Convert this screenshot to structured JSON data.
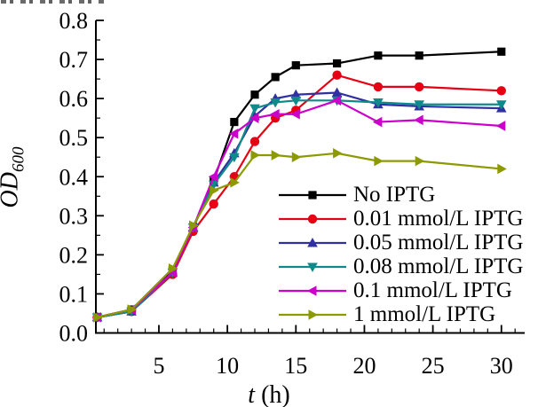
{
  "chart_data": {
    "type": "line",
    "title": "",
    "xlabel": "t (h)",
    "ylabel": "OD600",
    "x": [
      0.5,
      3,
      6,
      7.5,
      9,
      10.5,
      12,
      13.5,
      15,
      18,
      21,
      24,
      30
    ],
    "xlim": [
      0.4,
      31.7
    ],
    "ylim": [
      0,
      0.8
    ],
    "x_major_ticks": [
      5,
      10,
      15,
      20,
      25,
      30
    ],
    "x_minor_step": 1,
    "y_major_step": 0.1,
    "y_minor_step": 0.05,
    "grid": false,
    "legend_position": "inside-bottom-right",
    "series": [
      {
        "name": "No IPTG",
        "color": "#000000",
        "marker": "square",
        "values": [
          0.04,
          0.06,
          0.16,
          0.27,
          0.39,
          0.54,
          0.61,
          0.655,
          0.685,
          0.69,
          0.71,
          0.71,
          0.72
        ]
      },
      {
        "name": "0.01 mmol/L IPTG",
        "color": "#e60014",
        "marker": "circle",
        "values": [
          0.04,
          0.055,
          0.15,
          0.26,
          0.33,
          0.4,
          0.49,
          0.55,
          0.57,
          0.66,
          0.63,
          0.63,
          0.62
        ]
      },
      {
        "name": "0.05 mmol/L IPTG",
        "color": "#3030a2",
        "marker": "triangle-up",
        "values": [
          0.04,
          0.055,
          0.155,
          0.27,
          0.385,
          0.46,
          0.555,
          0.6,
          0.61,
          0.615,
          0.585,
          0.58,
          0.575
        ]
      },
      {
        "name": "0.08 mmol/L IPTG",
        "color": "#0f8a8a",
        "marker": "triangle-down",
        "values": [
          0.04,
          0.055,
          0.155,
          0.27,
          0.38,
          0.45,
          0.575,
          0.59,
          0.595,
          0.595,
          0.59,
          0.585,
          0.585
        ]
      },
      {
        "name": "0.1 mmol/L IPTG",
        "color": "#cb00cb",
        "marker": "triangle-left",
        "values": [
          0.04,
          0.06,
          0.155,
          0.27,
          0.4,
          0.51,
          0.55,
          0.56,
          0.56,
          0.595,
          0.54,
          0.545,
          0.53
        ]
      },
      {
        "name": "1 mmol/L IPTG",
        "color": "#8c9a00",
        "marker": "triangle-right",
        "values": [
          0.04,
          0.06,
          0.165,
          0.275,
          0.365,
          0.385,
          0.455,
          0.455,
          0.45,
          0.46,
          0.44,
          0.44,
          0.42
        ]
      }
    ]
  },
  "axes": {
    "ylabel_main": "OD",
    "ylabel_sub": "600",
    "xlabel_var": "t",
    "xlabel_unit": "(h)"
  }
}
